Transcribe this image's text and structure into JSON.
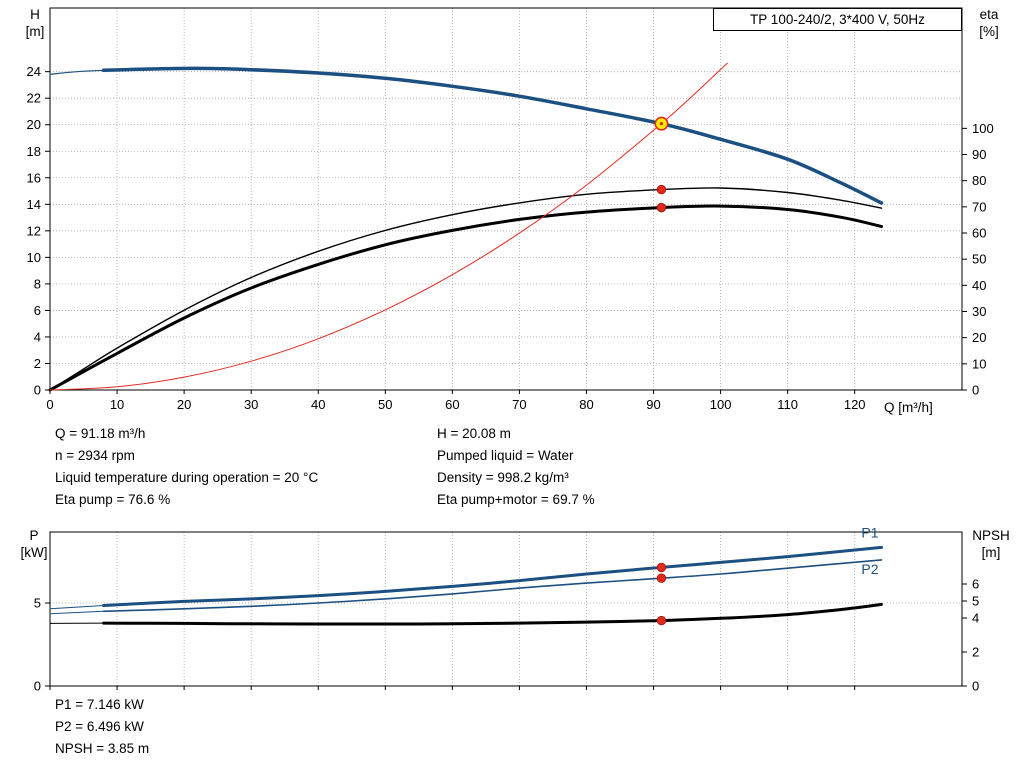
{
  "title_box": "TP 100-240/2, 3*400 V, 50Hz",
  "colors": {
    "curve_blue": "#1c4f82",
    "curve_black": "#000000",
    "curve_red": "#e02a1e",
    "duty_fill": "#ffe800",
    "grid": "#a8a8a8"
  },
  "axis_titles": {
    "top_left_1": "H",
    "top_left_2": "[m]",
    "top_right_1": "eta",
    "top_right_2": "[%]",
    "x_title": "Q [m³/h]",
    "bottom_left_1": "P",
    "bottom_left_2": "[kW]",
    "bottom_right_1": "NPSH",
    "bottom_right_2": "[m]"
  },
  "operating_point_text": {
    "left": [
      "Q = 91.18 m³/h",
      "n = 2934 rpm",
      "Liquid temperature during operation = 20 °C",
      "Eta pump = 76.6 %"
    ],
    "right": [
      "H = 20.08 m",
      "Pumped liquid = Water",
      "Density = 998.2 kg/m³",
      "Eta pump+motor = 69.7 %"
    ]
  },
  "power_text": [
    "P1 = 7.146 kW",
    "P2 = 6.496 kW",
    "NPSH = 3.85 m"
  ],
  "chart_data": [
    {
      "type": "line",
      "name": "head-efficiency-chart",
      "title": "TP 100-240/2, 3*400 V, 50Hz",
      "x": {
        "label": "Q [m³/h]",
        "min": 0,
        "max": 136,
        "ticks": [
          0,
          10,
          20,
          30,
          40,
          50,
          60,
          70,
          80,
          90,
          100,
          110,
          120
        ],
        "show_labels": true
      },
      "y_left": {
        "label": "H [m]",
        "min": 0,
        "max": 28.8,
        "ticks": [
          0,
          2,
          4,
          6,
          8,
          10,
          12,
          14,
          16,
          18,
          20,
          22,
          24
        ]
      },
      "y_right": {
        "label": "eta [%]",
        "min": 0,
        "max": 146,
        "ticks": [
          0,
          10,
          20,
          30,
          40,
          50,
          60,
          70,
          80,
          90,
          100
        ]
      },
      "series": [
        {
          "name": "pump-curve-low-flow",
          "axis": "left",
          "color": "curve_blue",
          "width": 1.2,
          "points": [
            [
              0,
              23.8
            ],
            [
              4,
              24.0
            ],
            [
              8,
              24.1
            ]
          ]
        },
        {
          "name": "pump-curve",
          "axis": "left",
          "color": "curve_blue",
          "width": 3.5,
          "points": [
            [
              8,
              24.1
            ],
            [
              15,
              24.2
            ],
            [
              22,
              24.25
            ],
            [
              30,
              24.15
            ],
            [
              40,
              23.9
            ],
            [
              50,
              23.5
            ],
            [
              60,
              22.9
            ],
            [
              70,
              22.15
            ],
            [
              80,
              21.2
            ],
            [
              91.18,
              20.08
            ],
            [
              100,
              18.9
            ],
            [
              110,
              17.4
            ],
            [
              118,
              15.6
            ],
            [
              124,
              14.1
            ]
          ]
        },
        {
          "name": "eta-pump-curve",
          "axis": "right",
          "color": "curve_black",
          "width": 1.4,
          "points": [
            [
              0,
              0
            ],
            [
              5,
              8
            ],
            [
              10,
              16
            ],
            [
              20,
              30.5
            ],
            [
              30,
              43
            ],
            [
              40,
              53
            ],
            [
              50,
              61
            ],
            [
              60,
              67
            ],
            [
              70,
              71.5
            ],
            [
              80,
              74.8
            ],
            [
              91.18,
              76.6
            ],
            [
              100,
              77.2
            ],
            [
              110,
              75.5
            ],
            [
              118,
              72.5
            ],
            [
              124,
              69.5
            ]
          ]
        },
        {
          "name": "eta-pump-motor-curve",
          "axis": "right",
          "color": "curve_black",
          "width": 3,
          "points": [
            [
              0,
              0
            ],
            [
              5,
              7
            ],
            [
              10,
              14
            ],
            [
              20,
              27.5
            ],
            [
              30,
              39
            ],
            [
              40,
              48
            ],
            [
              50,
              55.5
            ],
            [
              60,
              61
            ],
            [
              70,
              65.2
            ],
            [
              80,
              68
            ],
            [
              91.18,
              69.7
            ],
            [
              100,
              70.3
            ],
            [
              110,
              69.0
            ],
            [
              118,
              66.0
            ],
            [
              124,
              62.5
            ]
          ]
        },
        {
          "name": "system-curve",
          "axis": "left",
          "color": "curve_red",
          "width": 1,
          "points": [
            [
              0,
              0
            ],
            [
              10,
              0.24
            ],
            [
              20,
              0.97
            ],
            [
              30,
              2.17
            ],
            [
              40,
              3.86
            ],
            [
              50,
              6.04
            ],
            [
              60,
              8.69
            ],
            [
              70,
              11.83
            ],
            [
              80,
              15.45
            ],
            [
              91.18,
              20.08
            ],
            [
              96,
              22.26
            ],
            [
              101,
              24.64
            ]
          ]
        }
      ],
      "markers": [
        {
          "name": "duty-point",
          "axis": "left",
          "x": 91.18,
          "y": 20.08,
          "style": "duty"
        },
        {
          "name": "eta-pump-point",
          "axis": "right",
          "x": 91.18,
          "y": 76.6,
          "style": "dot"
        },
        {
          "name": "eta-pump-motor-point",
          "axis": "right",
          "x": 91.18,
          "y": 69.7,
          "style": "dot"
        }
      ],
      "annotations": []
    },
    {
      "type": "line",
      "name": "power-npsh-chart",
      "x": {
        "label": "",
        "min": 0,
        "max": 136,
        "ticks": [
          0,
          10,
          20,
          30,
          40,
          50,
          60,
          70,
          80,
          90,
          100,
          110,
          120
        ],
        "show_labels": false
      },
      "y_left": {
        "label": "P [kW]",
        "min": 0,
        "max": 9.28,
        "ticks": [
          0,
          5
        ]
      },
      "y_right": {
        "label": "NPSH [m]",
        "min": 0,
        "max": 9.06,
        "ticks": [
          0,
          2,
          4,
          5,
          6
        ]
      },
      "series": [
        {
          "name": "p1-curve-low-flow",
          "axis": "left",
          "color": "curve_blue",
          "width": 1,
          "points": [
            [
              0,
              4.65
            ],
            [
              8,
              4.85
            ]
          ]
        },
        {
          "name": "p1-curve",
          "axis": "left",
          "color": "curve_blue",
          "width": 3,
          "points": [
            [
              8,
              4.85
            ],
            [
              20,
              5.1
            ],
            [
              30,
              5.25
            ],
            [
              40,
              5.45
            ],
            [
              50,
              5.7
            ],
            [
              60,
              6.0
            ],
            [
              70,
              6.35
            ],
            [
              80,
              6.75
            ],
            [
              91.18,
              7.146
            ],
            [
              100,
              7.45
            ],
            [
              110,
              7.8
            ],
            [
              124,
              8.35
            ]
          ]
        },
        {
          "name": "p2-curve-low-flow",
          "axis": "left",
          "color": "curve_blue",
          "width": 1,
          "points": [
            [
              0,
              4.35
            ],
            [
              8,
              4.5
            ]
          ]
        },
        {
          "name": "p2-curve",
          "axis": "left",
          "color": "curve_blue",
          "width": 1.6,
          "points": [
            [
              8,
              4.5
            ],
            [
              20,
              4.65
            ],
            [
              30,
              4.8
            ],
            [
              40,
              5.0
            ],
            [
              50,
              5.25
            ],
            [
              60,
              5.55
            ],
            [
              70,
              5.9
            ],
            [
              80,
              6.2
            ],
            [
              91.18,
              6.496
            ],
            [
              100,
              6.75
            ],
            [
              110,
              7.1
            ],
            [
              124,
              7.6
            ]
          ]
        },
        {
          "name": "npsh-curve-low-flow",
          "axis": "right",
          "color": "curve_black",
          "width": 1,
          "points": [
            [
              0,
              3.68
            ],
            [
              8,
              3.7
            ]
          ]
        },
        {
          "name": "npsh-curve",
          "axis": "right",
          "color": "curve_black",
          "width": 3,
          "points": [
            [
              8,
              3.7
            ],
            [
              20,
              3.68
            ],
            [
              30,
              3.66
            ],
            [
              40,
              3.65
            ],
            [
              55,
              3.65
            ],
            [
              70,
              3.7
            ],
            [
              80,
              3.76
            ],
            [
              91.18,
              3.85
            ],
            [
              100,
              3.98
            ],
            [
              110,
              4.2
            ],
            [
              118,
              4.5
            ],
            [
              124,
              4.8
            ]
          ]
        }
      ],
      "markers": [
        {
          "name": "p1-point",
          "axis": "left",
          "x": 91.18,
          "y": 7.146,
          "style": "dot"
        },
        {
          "name": "p2-point",
          "axis": "left",
          "x": 91.18,
          "y": 6.496,
          "style": "dot"
        },
        {
          "name": "npsh-point",
          "axis": "right",
          "x": 91.18,
          "y": 3.85,
          "style": "dot"
        }
      ],
      "annotations": [
        {
          "name": "p1-label",
          "text": "P1",
          "axis": "left",
          "x": 121,
          "y": 8.95,
          "color": "curve_blue"
        },
        {
          "name": "p2-label",
          "text": "P2",
          "axis": "left",
          "x": 121,
          "y": 6.75,
          "color": "curve_blue"
        }
      ]
    }
  ]
}
